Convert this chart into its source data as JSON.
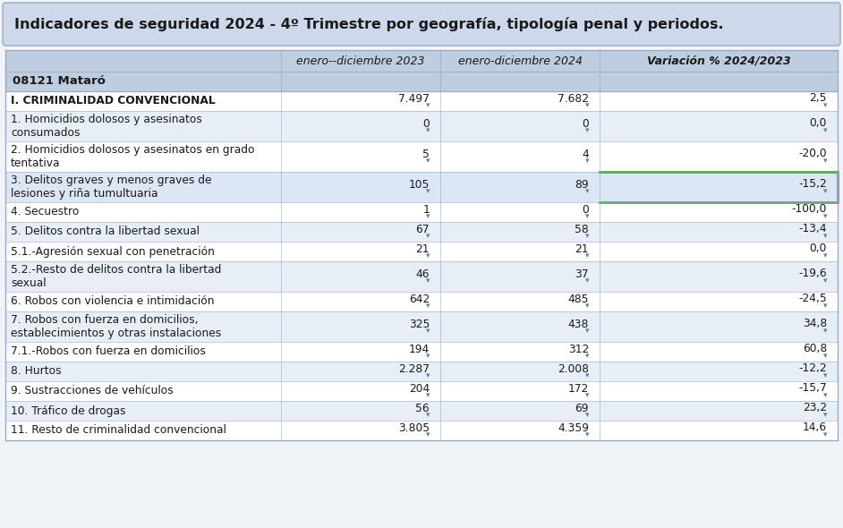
{
  "title": "Indicadores de seguridad 2024 - 4º Trimestre por geografía, tipología penal y periodos.",
  "subtitle_location": "08121 Mataró",
  "col_headers": [
    "enero--diciembre 2023",
    "enero-diciembre 2024",
    "Variación % 2024/2023"
  ],
  "rows": [
    {
      "label": "I. CRIMINALIDAD CONVENCIONAL",
      "v2023": "7.497",
      "v2024": "7.682",
      "var": "2,5",
      "bold": true,
      "multiline": false,
      "highlight": false
    },
    {
      "label": "1. Homicidios dolosos y asesinatos\nconsumados",
      "v2023": "0",
      "v2024": "0",
      "var": "0,0",
      "bold": false,
      "multiline": true,
      "highlight": false
    },
    {
      "label": "2. Homicidios dolosos y asesinatos en grado\ntentativa",
      "v2023": "5",
      "v2024": "4",
      "var": "-20,0",
      "bold": false,
      "multiline": true,
      "highlight": false
    },
    {
      "label": "3. Delitos graves y menos graves de\nlesiones y riña tumultuaria",
      "v2023": "105",
      "v2024": "89",
      "var": "-15,2",
      "bold": false,
      "multiline": true,
      "highlight": true
    },
    {
      "label": "4. Secuestro",
      "v2023": "1",
      "v2024": "0",
      "var": "-100,0",
      "bold": false,
      "multiline": false,
      "highlight": false
    },
    {
      "label": "5. Delitos contra la libertad sexual",
      "v2023": "67",
      "v2024": "58",
      "var": "-13,4",
      "bold": false,
      "multiline": false,
      "highlight": false
    },
    {
      "label": "5.1.-Agresión sexual con penetración",
      "v2023": "21",
      "v2024": "21",
      "var": "0,0",
      "bold": false,
      "multiline": false,
      "highlight": false
    },
    {
      "label": "5.2.-Resto de delitos contra la libertad\nsexual",
      "v2023": "46",
      "v2024": "37",
      "var": "-19,6",
      "bold": false,
      "multiline": true,
      "highlight": false
    },
    {
      "label": "6. Robos con violencia e intimidación",
      "v2023": "642",
      "v2024": "485",
      "var": "-24,5",
      "bold": false,
      "multiline": false,
      "highlight": false
    },
    {
      "label": "7. Robos con fuerza en domicilios,\nestablecimientos y otras instalaciones",
      "v2023": "325",
      "v2024": "438",
      "var": "34,8",
      "bold": false,
      "multiline": true,
      "highlight": false
    },
    {
      "label": "7.1.-Robos con fuerza en domicilios",
      "v2023": "194",
      "v2024": "312",
      "var": "60,8",
      "bold": false,
      "multiline": false,
      "highlight": false
    },
    {
      "label": "8. Hurtos",
      "v2023": "2.287",
      "v2024": "2.008",
      "var": "-12,2",
      "bold": false,
      "multiline": false,
      "highlight": false
    },
    {
      "label": "9. Sustracciones de vehículos",
      "v2023": "204",
      "v2024": "172",
      "var": "-15,7",
      "bold": false,
      "multiline": false,
      "highlight": false
    },
    {
      "label": "10. Tráfico de drogas",
      "v2023": "56",
      "v2024": "69",
      "var": "23,2",
      "bold": false,
      "multiline": false,
      "highlight": false
    },
    {
      "label": "11. Resto de criminalidad convencional",
      "v2023": "3.805",
      "v2024": "4.359",
      "var": "14,6",
      "bold": false,
      "multiline": false,
      "highlight": false
    }
  ],
  "bg_page": "#f0f4f8",
  "bg_title": "#cdd8ea",
  "bg_header": "#bfcde0",
  "bg_white": "#ffffff",
  "bg_light": "#e8eef6",
  "bg_highlight": "#dce6f5",
  "border_color": "#9aaac0",
  "highlight_border": "#4caf50",
  "text_color": "#1a1a1a",
  "arrow_color": "#6080a8",
  "title_fontsize": 11.5,
  "header_fontsize": 9.0,
  "data_fontsize": 8.8,
  "subtitle_fontsize": 9.5
}
